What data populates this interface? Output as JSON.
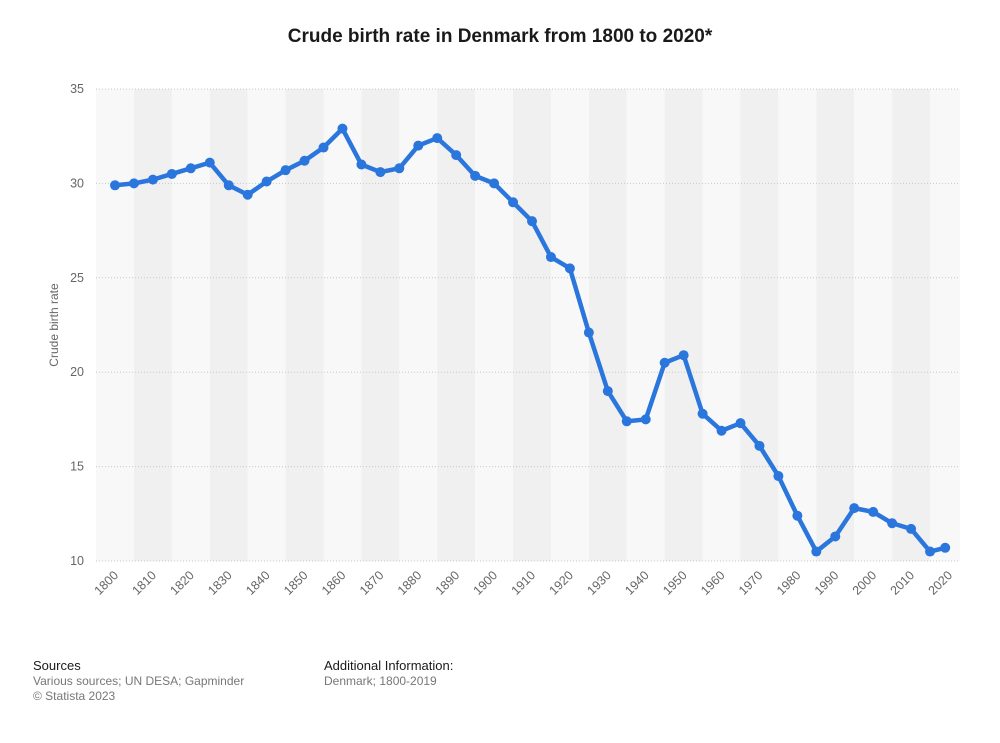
{
  "chart_data": {
    "type": "line",
    "title": "Crude birth rate in Denmark from 1800 to 2020*",
    "xlabel": "",
    "ylabel": "Crude birth rate",
    "ylim": [
      10,
      35
    ],
    "yticks": [
      10,
      15,
      20,
      25,
      30,
      35
    ],
    "xlim": [
      1800,
      2020
    ],
    "xticks": [
      1800,
      1810,
      1820,
      1830,
      1840,
      1850,
      1860,
      1870,
      1880,
      1890,
      1900,
      1910,
      1920,
      1930,
      1940,
      1950,
      1960,
      1970,
      1980,
      1990,
      2000,
      2010,
      2020
    ],
    "grid": true,
    "series": [
      {
        "name": "",
        "color": "#2a76dd",
        "x": [
          1800,
          1805,
          1810,
          1815,
          1820,
          1825,
          1830,
          1835,
          1840,
          1845,
          1850,
          1855,
          1860,
          1865,
          1870,
          1875,
          1880,
          1885,
          1890,
          1895,
          1900,
          1905,
          1910,
          1915,
          1920,
          1925,
          1930,
          1935,
          1940,
          1945,
          1950,
          1955,
          1960,
          1965,
          1970,
          1975,
          1980,
          1985,
          1990,
          1995,
          2000,
          2005,
          2010,
          2015,
          2019
        ],
        "y": [
          29.9,
          30.0,
          30.2,
          30.5,
          30.8,
          31.1,
          29.9,
          29.4,
          30.1,
          30.7,
          31.2,
          31.9,
          32.9,
          31.0,
          30.6,
          30.8,
          32.0,
          32.4,
          31.5,
          30.4,
          30.0,
          29.0,
          28.0,
          26.1,
          25.5,
          22.1,
          19.0,
          17.4,
          17.5,
          20.5,
          20.9,
          17.8,
          16.9,
          17.3,
          16.1,
          14.5,
          12.4,
          10.5,
          11.3,
          12.8,
          12.6,
          12.0,
          11.7,
          10.5,
          10.7
        ]
      }
    ]
  },
  "footer": {
    "sources_heading": "Sources",
    "sources_text": "Various sources; UN DESA; Gapminder",
    "copyright": "© Statista 2023",
    "additional_heading": "Additional Information:",
    "additional_text": "Denmark; 1800-2019"
  }
}
